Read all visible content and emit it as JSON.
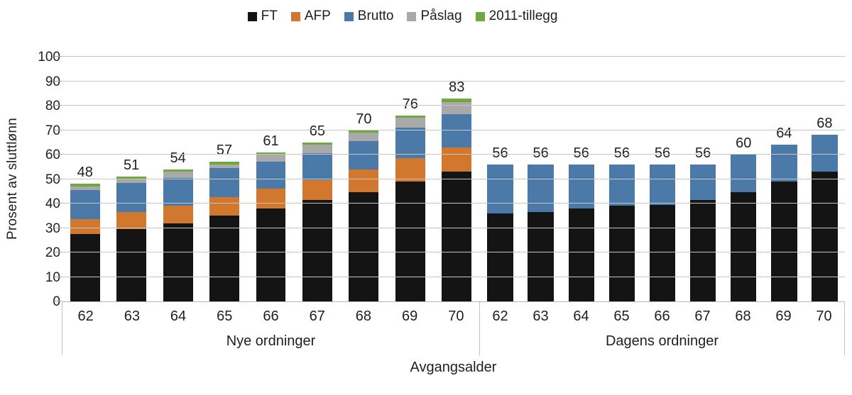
{
  "chart_data": {
    "type": "bar",
    "stacked": true,
    "title": "",
    "ylabel": "Prosent av sluttlønn",
    "xlabel": "Avgangsalder",
    "ylim": [
      0,
      100
    ],
    "y_ticks": [
      0,
      10,
      20,
      30,
      40,
      50,
      60,
      70,
      80,
      90,
      100
    ],
    "grid": true,
    "legend_position": "top",
    "legend": [
      {
        "name": "FT",
        "color": "#141414"
      },
      {
        "name": "AFP",
        "color": "#d1782e"
      },
      {
        "name": "Brutto",
        "color": "#4b79a8"
      },
      {
        "name": "Påslag",
        "color": "#a9a9a9"
      },
      {
        "name": "2011-tillegg",
        "color": "#6fa83f"
      }
    ],
    "groups": [
      {
        "label": "Nye ordninger",
        "width_pct": 53.4,
        "categories": [
          "62",
          "63",
          "64",
          "65",
          "66",
          "67",
          "68",
          "69",
          "70"
        ],
        "totals": [
          48,
          51,
          54,
          57,
          61,
          65,
          70,
          76,
          83
        ],
        "series": [
          {
            "name": "FT",
            "values": [
              27.5,
              29.5,
              32,
              35,
              38,
              41.5,
              44.5,
              49,
              53
            ]
          },
          {
            "name": "AFP",
            "values": [
              6,
              7,
              7,
              7.5,
              8,
              8,
              9.5,
              9.5,
              10
            ]
          },
          {
            "name": "Brutto",
            "values": [
              12,
              12,
              11.5,
              12,
              11,
              11,
              11.5,
              12.5,
              13.5
            ]
          },
          {
            "name": "Påslag",
            "values": [
              1.5,
              1.5,
              2.5,
              1.5,
              3,
              3.5,
              3.5,
              4,
              5
            ]
          },
          {
            "name": "2011-tillegg",
            "values": [
              1,
              1,
              1,
              1,
              1,
              1,
              1,
              1,
              1.5
            ]
          }
        ]
      },
      {
        "label": "Dagens ordninger",
        "width_pct": 46.6,
        "categories": [
          "62",
          "63",
          "64",
          "65",
          "66",
          "67",
          "68",
          "69",
          "70"
        ],
        "totals": [
          56,
          56,
          56,
          56,
          56,
          56,
          60,
          64,
          68
        ],
        "series": [
          {
            "name": "FT",
            "values": [
              36,
              36.5,
              38,
              39,
              39.5,
              41.5,
              44.5,
              49,
              53
            ]
          },
          {
            "name": "AFP",
            "values": [
              0,
              0,
              0,
              0,
              0,
              0,
              0,
              0,
              0
            ]
          },
          {
            "name": "Brutto",
            "values": [
              20,
              19.5,
              18,
              17,
              16.5,
              14.5,
              15.5,
              15,
              15
            ]
          },
          {
            "name": "Påslag",
            "values": [
              0,
              0,
              0,
              0,
              0,
              0,
              0,
              0,
              0
            ]
          },
          {
            "name": "2011-tillegg",
            "values": [
              0,
              0,
              0,
              0,
              0,
              0,
              0,
              0,
              0
            ]
          }
        ]
      }
    ]
  }
}
